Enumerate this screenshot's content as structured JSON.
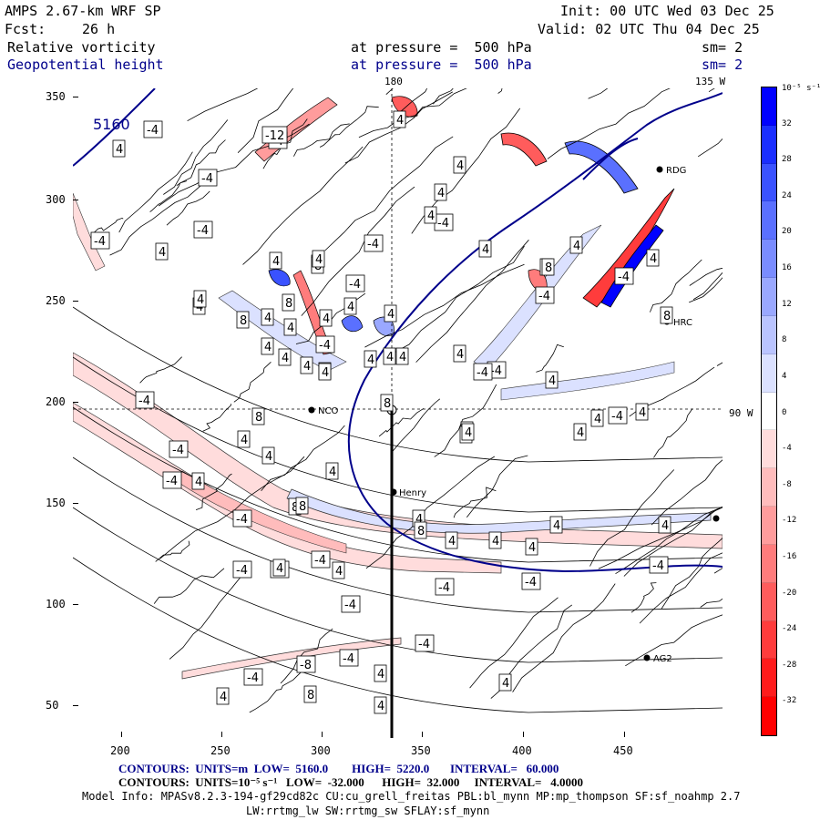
{
  "header": {
    "model": "AMPS 2.67-km WRF SP",
    "init": "Init: 00 UTC Wed 03 Dec 25",
    "fcst_label": "Fcst:",
    "fcst_value": "26 h",
    "valid": "Valid: 02 UTC Thu 04 Dec 25",
    "field1": "Relative vorticity",
    "field1_level": "at pressure =  500 hPa",
    "field1_sm": "sm= 2",
    "field2": "Geopotential height",
    "field2_level": "at pressure =  500 hPa",
    "field2_sm": "sm= 2"
  },
  "map": {
    "lon_top_label": "180",
    "lon_right_top_label": "135 W",
    "lon_right_label": "90 W",
    "y_ticks": [
      "350",
      "300",
      "250",
      "200",
      "150",
      "100",
      "50"
    ],
    "x_ticks": [
      "200",
      "250",
      "300",
      "350",
      "400",
      "450"
    ],
    "stations": [
      {
        "name": "RDG"
      },
      {
        "name": "HRC"
      },
      {
        "name": "NCO"
      },
      {
        "name": "Henry"
      },
      {
        "name": "AG2"
      }
    ],
    "height_label": "5160",
    "contour_labels": [
      "-4",
      "4",
      "8",
      "-8",
      "-12"
    ]
  },
  "colorbar": {
    "unit": "10⁻⁵ s⁻¹",
    "ticks": [
      "32",
      "28",
      "24",
      "20",
      "16",
      "12",
      "8",
      "4",
      "0",
      "-4",
      "-8",
      "-12",
      "-16",
      "-20",
      "-24",
      "-28",
      "-32"
    ],
    "colors": [
      "#0000ff",
      "#1a2eff",
      "#3a52ff",
      "#5a70ff",
      "#7a8cff",
      "#9aa8ff",
      "#bac4ff",
      "#dbe1ff",
      "#ffffff",
      "#ffdcdc",
      "#ffbcbc",
      "#ff9c9c",
      "#ff7c7c",
      "#ff5c5c",
      "#ff3c3c",
      "#ff1c1c",
      "#ff0000"
    ]
  },
  "footer": {
    "contours1": "CONTOURS:  UNITS=m  LOW=  5160.0        HIGH=  5220.0       INTERVAL=   60.000",
    "contours2": "CONTOURS:  UNITS=10⁻⁵ s⁻¹   LOW=  -32.000      HIGH=  32.000     INTERVAL=   4.0000",
    "model_info": "Model Info: MPASv8.2.3-194-gf29cd82c CU:cu_grell_freitas PBL:bl_mynn MP:mp_thompson SF:sf_noahmp 2.7",
    "model_info2": "LW:rrtmg_lw SW:rrtmg_sw SFLAY:sf_mynn"
  }
}
